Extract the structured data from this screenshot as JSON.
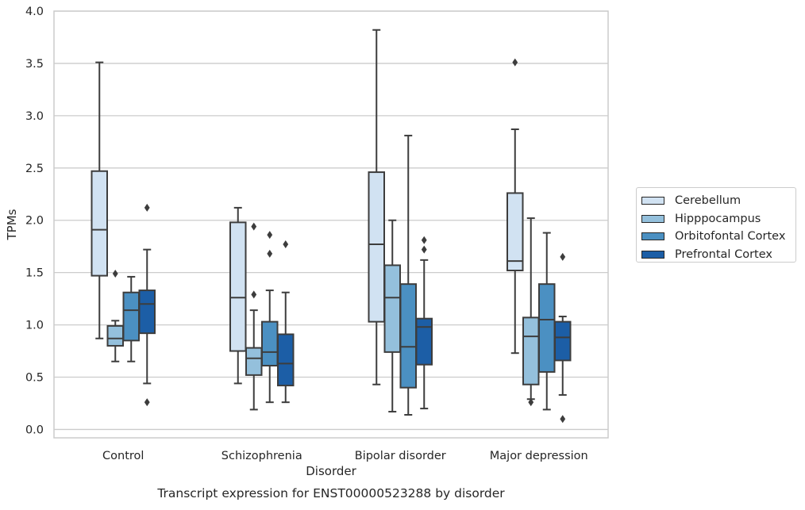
{
  "chart_data": {
    "type": "boxplot",
    "title": "Transcript expression for ENST00000523288 by disorder",
    "xlabel": "Disorder",
    "ylabel": "TPMs",
    "ylim": [
      -0.08,
      4.0
    ],
    "yticks": [
      "0.0",
      "0.5",
      "1.0",
      "1.5",
      "2.0",
      "2.5",
      "3.0",
      "3.5",
      "4.0"
    ],
    "grid": "horizontal",
    "legend_position": "outside-right",
    "categories": [
      "Control",
      "Schizophrenia",
      "Bipolar disorder",
      "Major depression"
    ],
    "series": [
      {
        "name": "Cerebellum",
        "color": "#d1e2f2",
        "boxes": [
          {
            "whislo": 0.87,
            "q1": 1.47,
            "med": 1.91,
            "q3": 2.47,
            "whishi": 3.51,
            "fliers": []
          },
          {
            "whislo": 0.44,
            "q1": 0.75,
            "med": 1.26,
            "q3": 1.98,
            "whishi": 2.12,
            "fliers": []
          },
          {
            "whislo": 0.43,
            "q1": 1.03,
            "med": 1.77,
            "q3": 2.46,
            "whishi": 3.82,
            "fliers": []
          },
          {
            "whislo": 0.73,
            "q1": 1.52,
            "med": 1.61,
            "q3": 2.26,
            "whishi": 2.87,
            "fliers": [
              3.51
            ]
          }
        ]
      },
      {
        "name": "Hipppocampus",
        "color": "#94c0dc",
        "boxes": [
          {
            "whislo": 0.65,
            "q1": 0.8,
            "med": 0.87,
            "q3": 0.99,
            "whishi": 1.04,
            "fliers": [
              1.49
            ]
          },
          {
            "whislo": 0.19,
            "q1": 0.52,
            "med": 0.68,
            "q3": 0.78,
            "whishi": 1.14,
            "fliers": [
              1.29,
              1.94
            ]
          },
          {
            "whislo": 0.17,
            "q1": 0.74,
            "med": 1.26,
            "q3": 1.57,
            "whishi": 2.0,
            "fliers": []
          },
          {
            "whislo": 0.29,
            "q1": 0.43,
            "med": 0.89,
            "q3": 1.07,
            "whishi": 2.02,
            "fliers": [
              0.26
            ]
          }
        ]
      },
      {
        "name": "Orbitofontal Cortex",
        "color": "#4b90c2",
        "boxes": [
          {
            "whislo": 0.65,
            "q1": 0.85,
            "med": 1.14,
            "q3": 1.31,
            "whishi": 1.46,
            "fliers": []
          },
          {
            "whislo": 0.26,
            "q1": 0.61,
            "med": 0.74,
            "q3": 1.03,
            "whishi": 1.33,
            "fliers": [
              1.68,
              1.86
            ]
          },
          {
            "whislo": 0.14,
            "q1": 0.4,
            "med": 0.79,
            "q3": 1.39,
            "whishi": 2.81,
            "fliers": []
          },
          {
            "whislo": 0.19,
            "q1": 0.55,
            "med": 1.05,
            "q3": 1.39,
            "whishi": 1.88,
            "fliers": []
          }
        ]
      },
      {
        "name": "Prefrontal Cortex",
        "color": "#1c5ea6",
        "boxes": [
          {
            "whislo": 0.44,
            "q1": 0.92,
            "med": 1.2,
            "q3": 1.33,
            "whishi": 1.72,
            "fliers": [
              0.26,
              2.12
            ]
          },
          {
            "whislo": 0.26,
            "q1": 0.42,
            "med": 0.63,
            "q3": 0.91,
            "whishi": 1.31,
            "fliers": [
              1.77
            ]
          },
          {
            "whislo": 0.2,
            "q1": 0.62,
            "med": 0.98,
            "q3": 1.06,
            "whishi": 1.62,
            "fliers": [
              1.72,
              1.81
            ]
          },
          {
            "whislo": 0.33,
            "q1": 0.66,
            "med": 0.88,
            "q3": 1.03,
            "whishi": 1.08,
            "fliers": [
              0.1,
              1.65
            ]
          }
        ]
      }
    ]
  }
}
